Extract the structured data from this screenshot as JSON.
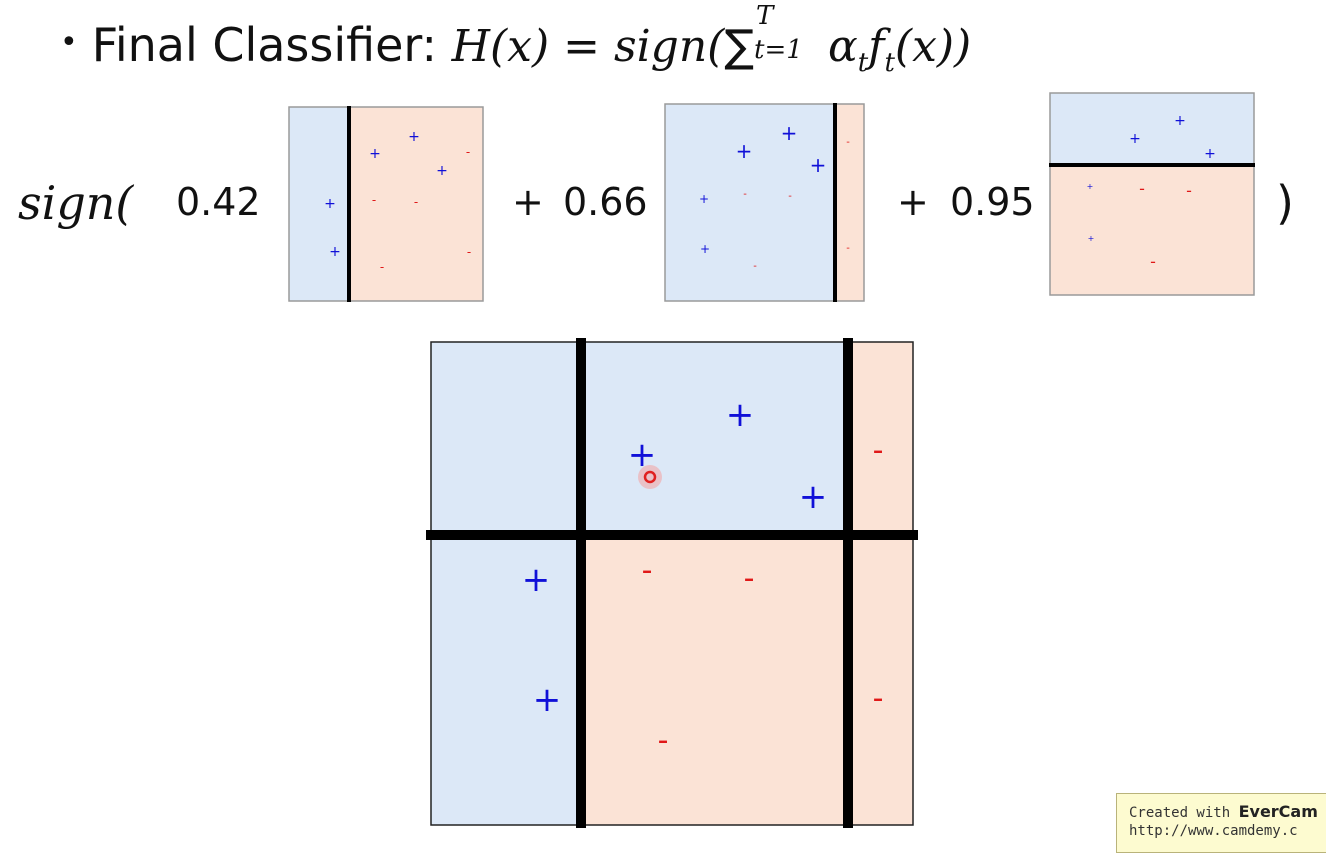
{
  "title": {
    "bullet": "•",
    "label": "Final Classifier: ",
    "lhs": "H(x)",
    "eq": " = ",
    "fn": "sign(",
    "sum": "∑",
    "sum_sub": "t=1",
    "sum_sup": "T",
    "term": " α",
    "alpha_sub": "t",
    "f": "f",
    "f_sub": "t",
    "arg": "(x))"
  },
  "formula": {
    "sign_open": "sign(",
    "w1": "0.42",
    "plus1": "+",
    "w2": "0.66",
    "plus2": "+",
    "w3": "0.95",
    "close": ")"
  },
  "marks": {
    "plus": "+",
    "minus": "-"
  },
  "watermark": {
    "line1_prefix": "Created with ",
    "line1_brand": "EverCam",
    "line2": "http://www.camdemy.c"
  },
  "colors": {
    "blue_region": "#dce8f7",
    "red_region": "#fbe3d6",
    "plus": "#1010d8",
    "minus": "#e01818",
    "boundary": "#000000"
  }
}
